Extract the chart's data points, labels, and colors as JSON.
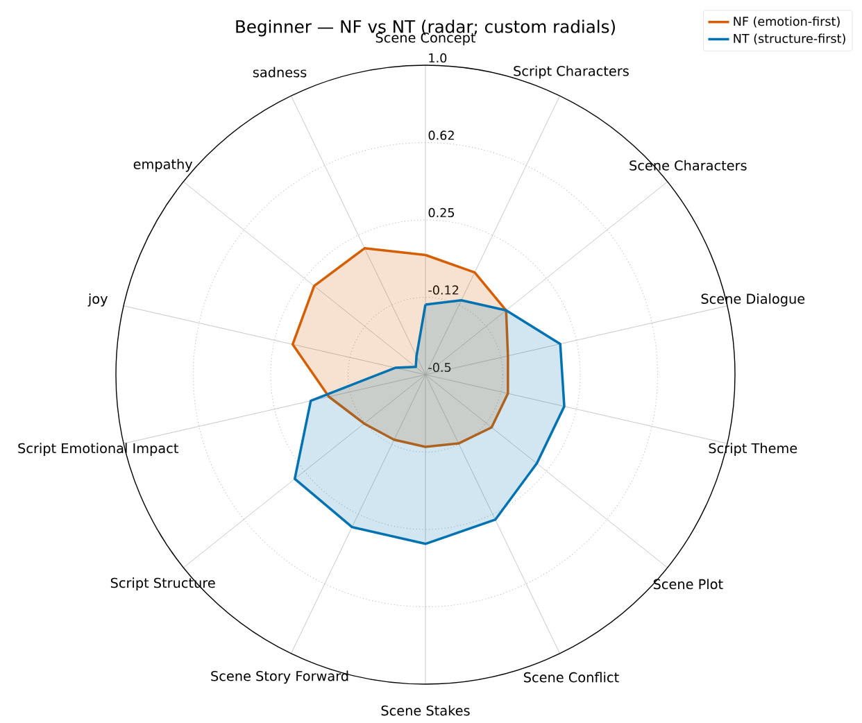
{
  "chart_data": {
    "type": "radar",
    "title": "Beginner — NF vs NT (radar; custom radials)",
    "categories": [
      "Scene Concept",
      "Script Characters",
      "Scene Characters",
      "Scene Dialogue",
      "Script Theme",
      "Scene Plot",
      "Scene Conflict",
      "Scene Stakes",
      "Scene Story Forward",
      "Script Structure",
      "Script Emotional Impact",
      "joy",
      "empathy",
      "sadness"
    ],
    "series": [
      {
        "name": "NF (emotion-first)",
        "color": "#d55e00",
        "values": [
          0.08,
          0.05,
          0.0,
          -0.09,
          -0.09,
          -0.09,
          -0.13,
          -0.15,
          -0.15,
          -0.12,
          -0.02,
          0.16,
          0.19,
          0.18
        ]
      },
      {
        "name": "NT (structure-first)",
        "color": "#0072b2",
        "values": [
          -0.16,
          -0.1,
          0.0,
          0.17,
          0.19,
          0.19,
          0.28,
          0.32,
          0.32,
          0.31,
          0.07,
          -0.35,
          -0.44,
          -0.4
        ]
      }
    ],
    "ylim": [
      -0.5,
      1.0
    ],
    "yticks": [
      -0.5,
      {
        "value": -0.125,
        "label": "-0.12"
      },
      0.25,
      {
        "value": 0.625,
        "label": "0.62"
      },
      {
        "value": 1.0,
        "label": "1.0"
      }
    ],
    "grid": true,
    "legend": "top right"
  }
}
